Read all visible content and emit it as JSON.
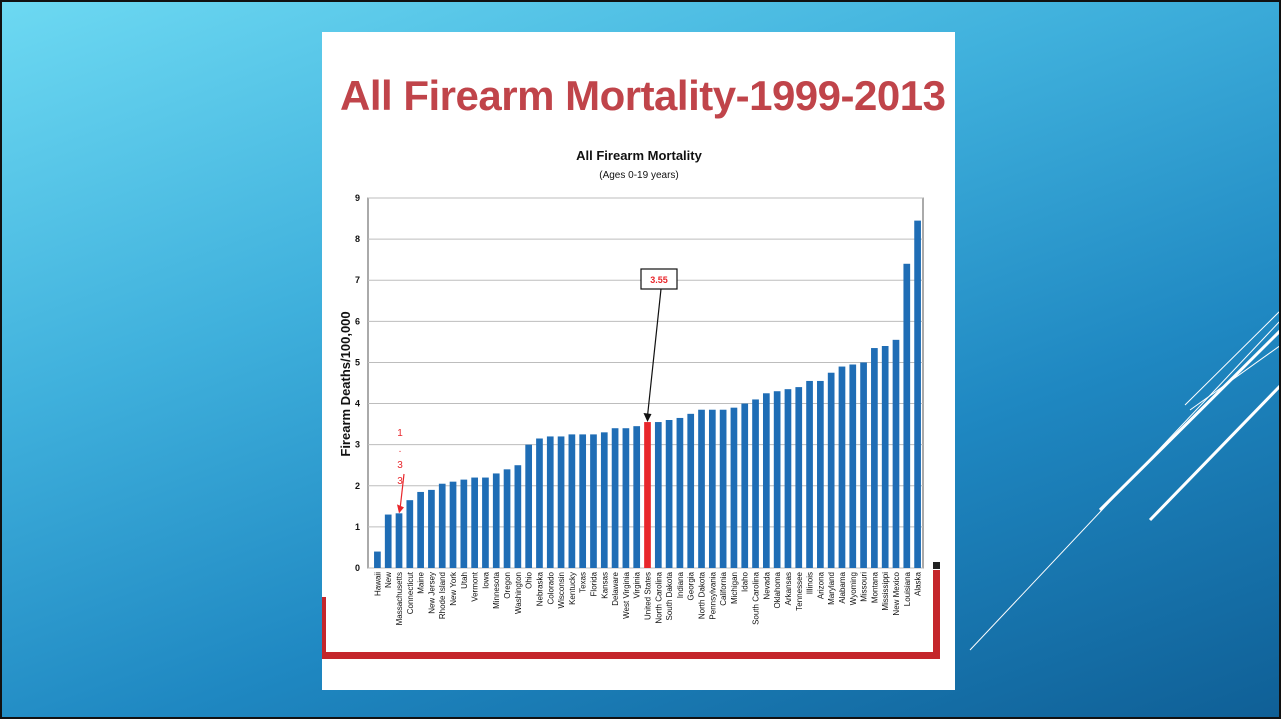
{
  "slide": {
    "heading": "All Firearm Mortality-1999-2013"
  },
  "colors": {
    "bar": "#1f6db5",
    "highlight_bar": "#e8262b",
    "heading": "#c0444a",
    "callout_text": "#e8262b",
    "bracket": "#c4262b"
  },
  "chart_data": {
    "type": "bar",
    "title": "All Firearm Mortality",
    "subtitle": "(Ages 0-19 years)",
    "ylabel": "Firearm Deaths/100,000",
    "xlabel": "",
    "ylim": [
      0,
      9
    ],
    "yticks": [
      "0",
      "1",
      "2",
      "3",
      "4",
      "5",
      "6",
      "7",
      "8",
      "9"
    ],
    "grid": true,
    "categories": [
      "Hawaii",
      "New",
      "Massachusetts",
      "Connecticut",
      "Maine",
      "New Jersey",
      "Rhode Island",
      "New York",
      "Utah",
      "Vermont",
      "Iowa",
      "Minnesota",
      "Oregon",
      "Washington",
      "Ohio",
      "Nebraska",
      "Colorado",
      "Wisconsin",
      "Kentucky",
      "Texas",
      "Florida",
      "Kansas",
      "Delaware",
      "West Virginia",
      "Virginia",
      "United States",
      "North Carolina",
      "South Dakota",
      "Indiana",
      "Georgia",
      "North Dakota",
      "Pennsylvania",
      "California",
      "Michigan",
      "Idaho",
      "South Carolina",
      "Nevada",
      "Oklahoma",
      "Arkansas",
      "Tennessee",
      "Illinois",
      "Arizona",
      "Maryland",
      "Alabama",
      "Wyoming",
      "Missouri",
      "Montana",
      "Mississippi",
      "New Mexico",
      "Louisiana",
      "Alaska"
    ],
    "values": [
      0.4,
      1.3,
      1.33,
      1.65,
      1.85,
      1.9,
      2.05,
      2.1,
      2.15,
      2.2,
      2.2,
      2.3,
      2.4,
      2.5,
      3.0,
      3.15,
      3.2,
      3.2,
      3.25,
      3.25,
      3.25,
      3.3,
      3.4,
      3.4,
      3.45,
      3.55,
      3.55,
      3.6,
      3.65,
      3.75,
      3.85,
      3.85,
      3.85,
      3.9,
      4.0,
      4.1,
      4.25,
      4.3,
      4.35,
      4.4,
      4.55,
      4.55,
      4.75,
      4.9,
      4.95,
      5.0,
      5.35,
      5.4,
      5.55,
      7.4,
      8.45
    ],
    "highlight_index": 25,
    "annotations": [
      {
        "text": "3.55",
        "target_index": 25
      },
      {
        "text": "1\n.\n3\n3",
        "target_index": 2
      }
    ]
  }
}
